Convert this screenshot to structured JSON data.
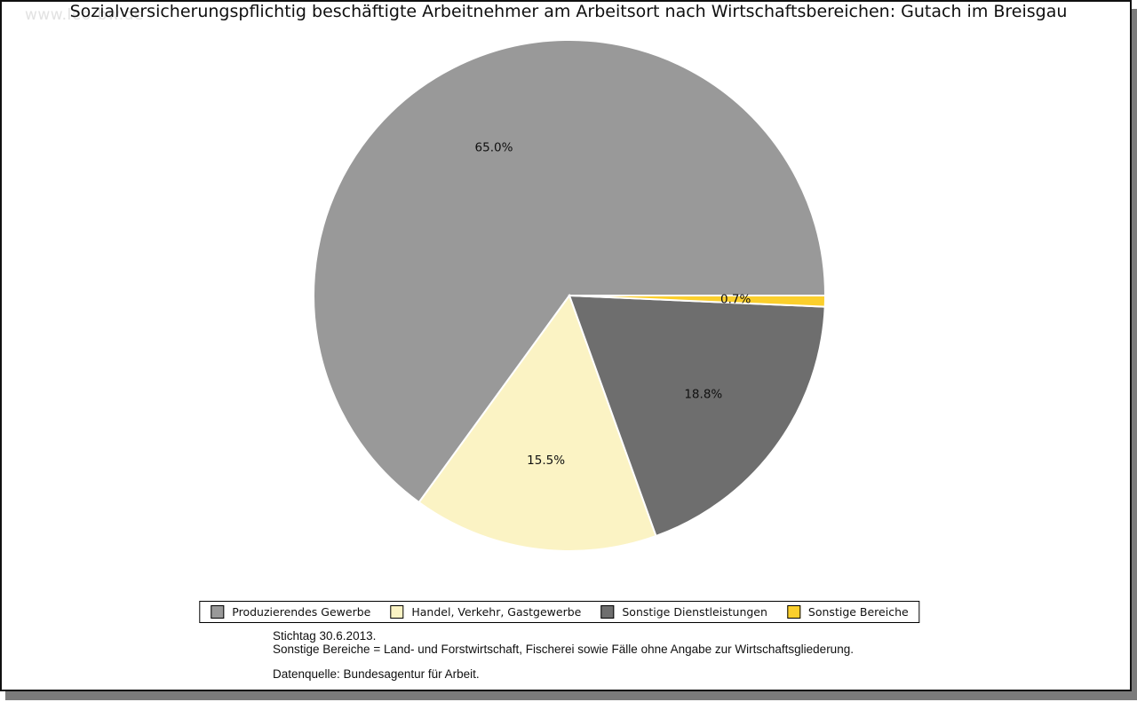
{
  "watermark": "www.leo-bw.de",
  "title": "Sozialversicherungspflichtig beschäftigte Arbeitnehmer am Arbeitsort nach Wirtschaftsbereichen: Gutach im Breisgau",
  "chart_data": {
    "type": "pie",
    "title": "Sozialversicherungspflichtig beschäftigte Arbeitnehmer am Arbeitsort nach Wirtschaftsbereichen: Gutach im Breisgau",
    "value_suffix": "%",
    "start_angle_deg": 0,
    "direction": "counterclockwise",
    "slice_border_color": "#ffffff",
    "legend_position": "bottom",
    "slices": [
      {
        "label": "Produzierendes Gewerbe",
        "value": 65.0,
        "display": "65.0%",
        "color": "#999999"
      },
      {
        "label": "Handel, Verkehr, Gastgewerbe",
        "value": 15.5,
        "display": "15.5%",
        "color": "#FBF3C4"
      },
      {
        "label": "Sonstige Dienstleistungen",
        "value": 18.8,
        "display": "18.8%",
        "color": "#6E6E6E"
      },
      {
        "label": "Sonstige Bereiche",
        "value": 0.7,
        "display": "0.7%",
        "color": "#FBCF2C"
      }
    ]
  },
  "footnotes": {
    "stichtag": "Stichtag 30.6.2013.",
    "definition": "Sonstige Bereiche = Land- und Forstwirtschaft, Fischerei sowie Fälle ohne Angabe zur Wirtschaftsgliederung.",
    "source": "Datenquelle: Bundesagentur für Arbeit."
  }
}
